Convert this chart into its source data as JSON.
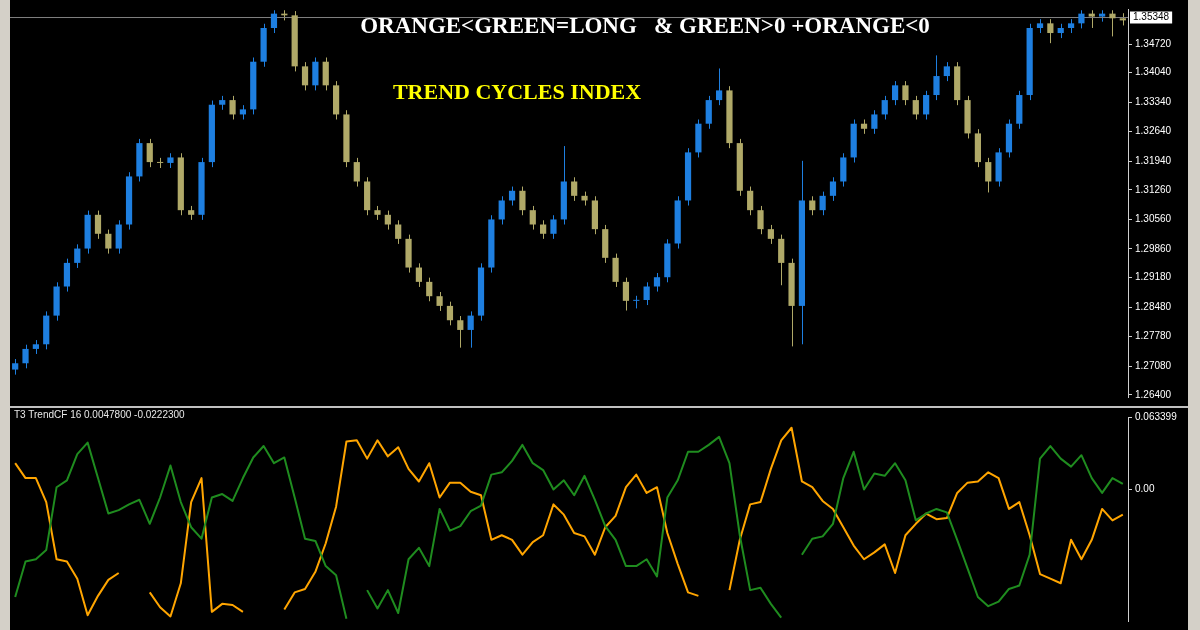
{
  "chart_data": [
    {
      "type": "candlestick",
      "title": "TREND CYCLES INDEX",
      "annotations": [
        "ORANGE<GREEN=LONG   & GREEN>0 +ORANGE<0"
      ],
      "categories": [
        null,
        null,
        null,
        null,
        null,
        null,
        null,
        null,
        null,
        null,
        null,
        null,
        null,
        null,
        null,
        null,
        null,
        null,
        null,
        null,
        null,
        null,
        null,
        null,
        null,
        null,
        null,
        null,
        null,
        null,
        null,
        null,
        null,
        null,
        null,
        null,
        null,
        null,
        null,
        null,
        null,
        null,
        null,
        null,
        null,
        null,
        null,
        null,
        null,
        null,
        null,
        null,
        null,
        null,
        null,
        null,
        null,
        null,
        null,
        null,
        null,
        null,
        null,
        null,
        null,
        null,
        null,
        null,
        null,
        null,
        null,
        null,
        null,
        null,
        null,
        null,
        null,
        null,
        null,
        null,
        null,
        null,
        null,
        null,
        null,
        null,
        null,
        null,
        null,
        null,
        null,
        null,
        null,
        null,
        null,
        null,
        null,
        null,
        null,
        null,
        null,
        null,
        null,
        null,
        null,
        null,
        null,
        null
      ],
      "ohlc": [
        [
          1.27,
          1.2725,
          1.2688,
          1.2715
        ],
        [
          1.2715,
          1.2759,
          1.2703,
          1.2749
        ],
        [
          1.2749,
          1.277,
          1.2737,
          1.276
        ],
        [
          1.276,
          1.2838,
          1.2748,
          1.2828
        ],
        [
          1.2828,
          1.2907,
          1.2816,
          1.2897
        ],
        [
          1.2897,
          1.2963,
          1.2885,
          1.2953
        ],
        [
          1.2953,
          1.2997,
          1.2941,
          1.2987
        ],
        [
          1.2987,
          1.3077,
          1.2975,
          1.3067
        ],
        [
          1.3067,
          1.3077,
          1.301,
          1.3022
        ],
        [
          1.3022,
          1.3032,
          1.2975,
          1.2987
        ],
        [
          1.2987,
          1.3054,
          1.2975,
          1.3044
        ],
        [
          1.3044,
          1.3168,
          1.3032,
          1.3158
        ],
        [
          1.3158,
          1.3247,
          1.3146,
          1.3237
        ],
        [
          1.3237,
          1.3247,
          1.318,
          1.3192
        ],
        [
          1.3192,
          1.3202,
          1.3178,
          1.319
        ],
        [
          1.319,
          1.3213,
          1.3178,
          1.3203
        ],
        [
          1.3203,
          1.3213,
          1.3066,
          1.3078
        ],
        [
          1.3078,
          1.3088,
          1.3055,
          1.3067
        ],
        [
          1.3067,
          1.3202,
          1.3055,
          1.3192
        ],
        [
          1.3192,
          1.3338,
          1.318,
          1.3328
        ],
        [
          1.3328,
          1.3349,
          1.3316,
          1.3339
        ],
        [
          1.3339,
          1.3349,
          1.3293,
          1.3305
        ],
        [
          1.3305,
          1.3327,
          1.3293,
          1.3317
        ],
        [
          1.3317,
          1.344,
          1.3305,
          1.343
        ],
        [
          1.343,
          1.352,
          1.3418,
          1.351
        ],
        [
          1.351,
          1.3552,
          1.3498,
          1.3544
        ],
        [
          1.3544,
          1.3552,
          1.3528,
          1.354
        ],
        [
          1.354,
          1.355,
          1.3407,
          1.3419
        ],
        [
          1.3419,
          1.3429,
          1.3362,
          1.3374
        ],
        [
          1.3374,
          1.344,
          1.3362,
          1.343
        ],
        [
          1.343,
          1.344,
          1.3362,
          1.3374
        ],
        [
          1.3374,
          1.3384,
          1.3293,
          1.3305
        ],
        [
          1.3305,
          1.3315,
          1.318,
          1.3192
        ],
        [
          1.3192,
          1.3202,
          1.3134,
          1.3146
        ],
        [
          1.3146,
          1.3156,
          1.3066,
          1.3078
        ],
        [
          1.3078,
          1.3088,
          1.3055,
          1.3067
        ],
        [
          1.3067,
          1.3077,
          1.3032,
          1.3044
        ],
        [
          1.3044,
          1.3054,
          1.2998,
          1.301
        ],
        [
          1.301,
          1.302,
          1.293,
          1.2942
        ],
        [
          1.2942,
          1.2952,
          1.2896,
          1.2908
        ],
        [
          1.2908,
          1.2918,
          1.2862,
          1.2874
        ],
        [
          1.2874,
          1.2884,
          1.2839,
          1.2851
        ],
        [
          1.2851,
          1.2861,
          1.2805,
          1.2817
        ],
        [
          1.2817,
          1.2827,
          1.2752,
          1.2794
        ],
        [
          1.2794,
          1.2838,
          1.2752,
          1.2828
        ],
        [
          1.2828,
          1.2952,
          1.2816,
          1.2942
        ],
        [
          1.2942,
          1.3066,
          1.293,
          1.3056
        ],
        [
          1.3056,
          1.3111,
          1.3044,
          1.3101
        ],
        [
          1.3101,
          1.3134,
          1.3089,
          1.3124
        ],
        [
          1.3124,
          1.3134,
          1.3066,
          1.3078
        ],
        [
          1.3078,
          1.3088,
          1.3032,
          1.3044
        ],
        [
          1.3044,
          1.3054,
          1.301,
          1.3022
        ],
        [
          1.3022,
          1.3066,
          1.301,
          1.3056
        ],
        [
          1.3056,
          1.323,
          1.3044,
          1.3146
        ],
        [
          1.3146,
          1.3156,
          1.31,
          1.3112
        ],
        [
          1.3112,
          1.3122,
          1.3089,
          1.3101
        ],
        [
          1.3101,
          1.3111,
          1.3021,
          1.3033
        ],
        [
          1.3033,
          1.3043,
          1.2953,
          1.2965
        ],
        [
          1.2965,
          1.2975,
          1.2896,
          1.2908
        ],
        [
          1.2908,
          1.2918,
          1.284,
          1.2863
        ],
        [
          1.2863,
          1.2875,
          1.2845,
          1.2865
        ],
        [
          1.2865,
          1.2907,
          1.2853,
          1.2897
        ],
        [
          1.2897,
          1.2929,
          1.2885,
          1.2919
        ],
        [
          1.2919,
          1.3009,
          1.2907,
          1.2999
        ],
        [
          1.2999,
          1.3111,
          1.2987,
          1.3101
        ],
        [
          1.3101,
          1.3225,
          1.3089,
          1.3215
        ],
        [
          1.3215,
          1.3293,
          1.3203,
          1.3283
        ],
        [
          1.3283,
          1.3349,
          1.3271,
          1.3339
        ],
        [
          1.3339,
          1.3414,
          1.3327,
          1.3362
        ],
        [
          1.3362,
          1.3372,
          1.3225,
          1.3237
        ],
        [
          1.3237,
          1.3247,
          1.3112,
          1.3124
        ],
        [
          1.3124,
          1.3134,
          1.3066,
          1.3078
        ],
        [
          1.3078,
          1.3088,
          1.3021,
          1.3033
        ],
        [
          1.3033,
          1.3043,
          1.2998,
          1.301
        ],
        [
          1.301,
          1.302,
          1.29,
          1.2953
        ],
        [
          1.2953,
          1.2963,
          1.2755,
          1.2851
        ],
        [
          1.2851,
          1.3195,
          1.276,
          1.3101
        ],
        [
          1.3101,
          1.3111,
          1.3066,
          1.3078
        ],
        [
          1.3078,
          1.3122,
          1.3066,
          1.3112
        ],
        [
          1.3112,
          1.3156,
          1.31,
          1.3146
        ],
        [
          1.3146,
          1.3213,
          1.3134,
          1.3203
        ],
        [
          1.3203,
          1.3293,
          1.3191,
          1.3283
        ],
        [
          1.3283,
          1.3293,
          1.3259,
          1.3271
        ],
        [
          1.3271,
          1.3315,
          1.3259,
          1.3305
        ],
        [
          1.3305,
          1.3349,
          1.3293,
          1.3339
        ],
        [
          1.3339,
          1.3384,
          1.3327,
          1.3374
        ],
        [
          1.3374,
          1.3384,
          1.3327,
          1.3339
        ],
        [
          1.3339,
          1.3349,
          1.3293,
          1.3305
        ],
        [
          1.3305,
          1.3361,
          1.3293,
          1.3351
        ],
        [
          1.3351,
          1.3445,
          1.3339,
          1.3396
        ],
        [
          1.3396,
          1.3429,
          1.3384,
          1.3419
        ],
        [
          1.3419,
          1.3429,
          1.3327,
          1.3339
        ],
        [
          1.3339,
          1.3349,
          1.3248,
          1.326
        ],
        [
          1.326,
          1.327,
          1.318,
          1.3192
        ],
        [
          1.3192,
          1.3202,
          1.312,
          1.3146
        ],
        [
          1.3146,
          1.3225,
          1.3134,
          1.3215
        ],
        [
          1.3215,
          1.3293,
          1.3203,
          1.3283
        ],
        [
          1.3283,
          1.3361,
          1.3271,
          1.3351
        ],
        [
          1.3351,
          1.352,
          1.3339,
          1.351
        ],
        [
          1.351,
          1.3531,
          1.3498,
          1.3521
        ],
        [
          1.3521,
          1.3531,
          1.3474,
          1.3498
        ],
        [
          1.3498,
          1.352,
          1.3486,
          1.351
        ],
        [
          1.351,
          1.3531,
          1.3498,
          1.3521
        ],
        [
          1.3521,
          1.3552,
          1.3509,
          1.3544
        ],
        [
          1.3544,
          1.3552,
          1.351,
          1.3537
        ],
        [
          1.3537,
          1.3552,
          1.3525,
          1.3544
        ],
        [
          1.3544,
          1.3552,
          1.349,
          1.3533
        ],
        [
          1.3533,
          1.3545,
          1.3516,
          1.3528
        ]
      ],
      "colors": [
        "#1e7fe0",
        "#1e7fe0",
        "#1e7fe0",
        "#1e7fe0",
        "#1e7fe0",
        "#1e7fe0",
        "#1e7fe0",
        "#1e7fe0",
        "#b0a968",
        "#b0a968",
        "#1e7fe0",
        "#1e7fe0",
        "#1e7fe0",
        "#b0a968",
        "#b0a968",
        "#1e7fe0",
        "#b0a968",
        "#b0a968",
        "#1e7fe0",
        "#1e7fe0",
        "#1e7fe0",
        "#b0a968",
        "#1e7fe0",
        "#1e7fe0",
        "#1e7fe0",
        "#1e7fe0",
        "#b0a968",
        "#b0a968",
        "#b0a968",
        "#1e7fe0",
        "#b0a968",
        "#b0a968",
        "#b0a968",
        "#b0a968",
        "#b0a968",
        "#b0a968",
        "#b0a968",
        "#b0a968",
        "#b0a968",
        "#b0a968",
        "#b0a968",
        "#b0a968",
        "#b0a968",
        "#b0a968",
        "#1e7fe0",
        "#1e7fe0",
        "#1e7fe0",
        "#1e7fe0",
        "#1e7fe0",
        "#b0a968",
        "#b0a968",
        "#b0a968",
        "#1e7fe0",
        "#1e7fe0",
        "#b0a968",
        "#b0a968",
        "#b0a968",
        "#b0a968",
        "#b0a968",
        "#b0a968",
        "#1e7fe0",
        "#1e7fe0",
        "#1e7fe0",
        "#1e7fe0",
        "#1e7fe0",
        "#1e7fe0",
        "#1e7fe0",
        "#1e7fe0",
        "#1e7fe0",
        "#b0a968",
        "#b0a968",
        "#b0a968",
        "#b0a968",
        "#b0a968",
        "#b0a968",
        "#b0a968",
        "#1e7fe0",
        "#b0a968",
        "#1e7fe0",
        "#1e7fe0",
        "#1e7fe0",
        "#1e7fe0",
        "#b0a968",
        "#1e7fe0",
        "#1e7fe0",
        "#1e7fe0",
        "#b0a968",
        "#b0a968",
        "#1e7fe0",
        "#1e7fe0",
        "#1e7fe0",
        "#b0a968",
        "#b0a968",
        "#b0a968",
        "#b0a968",
        "#1e7fe0",
        "#1e7fe0",
        "#1e7fe0",
        "#1e7fe0",
        "#1e7fe0",
        "#b0a968",
        "#1e7fe0",
        "#1e7fe0",
        "#1e7fe0",
        "#b0a968",
        "#1e7fe0",
        "#b0a968",
        "#b0a968"
      ],
      "ylim": [
        1.2635,
        1.3555
      ],
      "yticks": [
        {
          "value": 1.264,
          "label": "1.26400"
        },
        {
          "value": 1.2708,
          "label": "1.27080"
        },
        {
          "value": 1.2778,
          "label": "1.27780"
        },
        {
          "value": 1.2848,
          "label": "1.28480"
        },
        {
          "value": 1.2918,
          "label": "1.29180"
        },
        {
          "value": 1.2986,
          "label": "1.29860"
        },
        {
          "value": 1.3056,
          "label": "1.30560"
        },
        {
          "value": 1.3126,
          "label": "1.31260"
        },
        {
          "value": 1.3194,
          "label": "1.31940"
        },
        {
          "value": 1.3264,
          "label": "1.32640"
        },
        {
          "value": 1.3334,
          "label": "1.33340"
        },
        {
          "value": 1.3404,
          "label": "1.34040"
        },
        {
          "value": 1.3472,
          "label": "1.34720"
        }
      ],
      "ref_lines": [
        {
          "axis": "y",
          "value": 1.35348,
          "label": "1.35348",
          "color": "#808080"
        }
      ]
    },
    {
      "type": "line",
      "title": "T3 TrendCF 16 0.0047800 -0.0222300",
      "categories": [
        null,
        null,
        null,
        null,
        null,
        null,
        null,
        null,
        null,
        null,
        null,
        null,
        null,
        null,
        null,
        null,
        null,
        null,
        null,
        null,
        null,
        null,
        null,
        null,
        null,
        null,
        null,
        null,
        null,
        null,
        null,
        null,
        null,
        null,
        null,
        null,
        null,
        null,
        null,
        null,
        null,
        null,
        null,
        null,
        null,
        null,
        null,
        null,
        null,
        null,
        null,
        null,
        null,
        null,
        null,
        null,
        null,
        null,
        null,
        null,
        null,
        null,
        null,
        null,
        null,
        null,
        null,
        null,
        null,
        null,
        null,
        null,
        null,
        null,
        null,
        null,
        null,
        null,
        null,
        null,
        null,
        null,
        null,
        null,
        null,
        null,
        null,
        null,
        null,
        null,
        null,
        null,
        null,
        null,
        null,
        null,
        null,
        null,
        null,
        null,
        null,
        null,
        null,
        null,
        null,
        null,
        null,
        null
      ],
      "series": [
        {
          "color": "#1f8c1f",
          "values": [
            -0.094,
            -0.063,
            -0.061,
            -0.053,
            0.002,
            0.008,
            0.031,
            0.041,
            0.01,
            -0.021,
            -0.018,
            -0.013,
            -0.009,
            -0.03,
            -0.007,
            0.021,
            -0.011,
            -0.033,
            -0.043,
            -0.007,
            -0.004,
            -0.01,
            0.01,
            0.028,
            0.038,
            0.023,
            0.028,
            -0.007,
            -0.043,
            -0.045,
            -0.067,
            -0.075,
            -0.113,
            null,
            -0.088,
            -0.104,
            -0.088,
            -0.108,
            -0.061,
            -0.051,
            -0.067,
            -0.017,
            -0.036,
            -0.032,
            -0.019,
            -0.014,
            0.013,
            0.015,
            0.025,
            0.039,
            0.023,
            0.017,
            0,
            0.008,
            -0.005,
            0.012,
            -0.009,
            -0.032,
            -0.044,
            -0.067,
            -0.067,
            -0.061,
            -0.076,
            -0.007,
            0.008,
            0.033,
            0.033,
            0.039,
            0.046,
            0.023,
            -0.04,
            -0.088,
            -0.086,
            -0.1,
            -0.112,
            null,
            -0.057,
            -0.043,
            -0.041,
            -0.03,
            0.01,
            0.033,
            0,
            0.014,
            0.012,
            0.023,
            0.008,
            -0.027,
            -0.021,
            -0.017,
            -0.02,
            -0.044,
            -0.069,
            -0.094,
            -0.102,
            -0.098,
            -0.087,
            -0.084,
            -0.057,
            0.027,
            0.038,
            0.027,
            0.02,
            0.03,
            0.01,
            -0.003,
            0.01,
            0.005
          ]
        },
        {
          "color": "#ffa500",
          "values": [
            0.023,
            0.01,
            0.01,
            -0.011,
            -0.061,
            -0.063,
            -0.078,
            -0.11,
            -0.093,
            -0.079,
            -0.073,
            null,
            null,
            -0.09,
            -0.103,
            -0.111,
            -0.082,
            -0.011,
            0.01,
            -0.107,
            -0.1,
            -0.101,
            -0.107,
            null,
            null,
            null,
            -0.105,
            -0.09,
            -0.087,
            -0.072,
            -0.047,
            -0.015,
            0.042,
            0.043,
            0.027,
            0.043,
            0.029,
            0.037,
            0.018,
            0.007,
            0.023,
            -0.007,
            0.006,
            0.006,
            -0.002,
            -0.005,
            -0.044,
            -0.04,
            -0.044,
            -0.057,
            -0.046,
            -0.04,
            -0.013,
            -0.022,
            -0.038,
            -0.041,
            -0.057,
            -0.033,
            -0.023,
            0.002,
            0.013,
            -0.003,
            0.002,
            -0.038,
            -0.065,
            -0.09,
            -0.093,
            null,
            null,
            -0.088,
            -0.044,
            -0.013,
            -0.011,
            0.018,
            0.043,
            0.054,
            0.007,
            0.002,
            -0.01,
            -0.017,
            -0.033,
            -0.049,
            -0.061,
            -0.055,
            -0.048,
            -0.073,
            -0.04,
            -0.03,
            -0.021,
            -0.026,
            -0.025,
            -0.003,
            0.006,
            0.007,
            0.015,
            0.01,
            -0.017,
            -0.011,
            -0.04,
            -0.074,
            -0.078,
            -0.082,
            -0.044,
            -0.061,
            -0.044,
            -0.017,
            -0.027,
            -0.022
          ]
        }
      ],
      "ylim": [
        -0.115,
        0.063399
      ],
      "yticks": [
        0.063399,
        {
          "value": 0,
          "label": "0.00"
        }
      ]
    }
  ]
}
